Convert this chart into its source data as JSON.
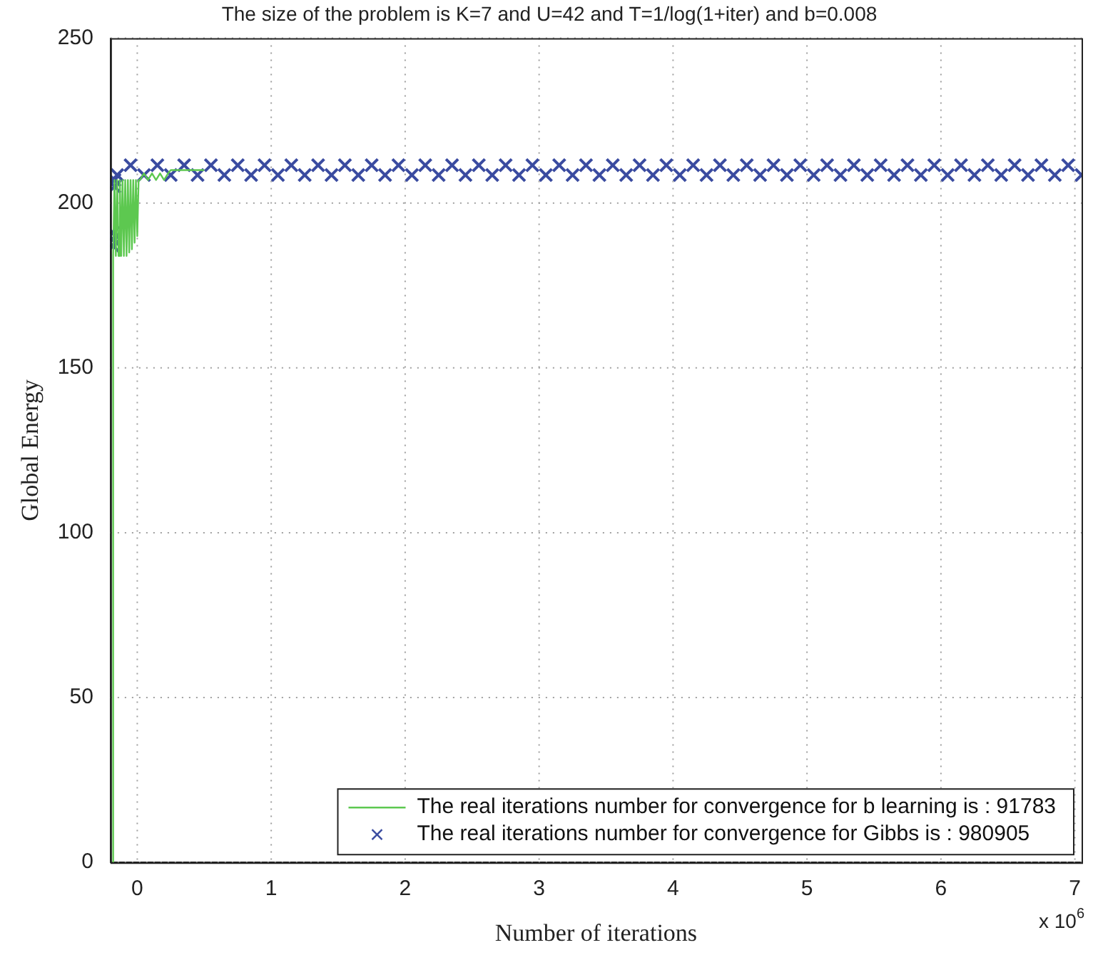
{
  "chart_data": {
    "type": "line",
    "title": "The size of the problem is K=7 and U=42 and T=1/log(1+iter) and b=0.008",
    "xlabel": "Number of iterations",
    "ylabel": "Global Energy",
    "annotations": [
      "x 10$^{6}$"
    ],
    "xlim": [
      -0.2,
      7.05
    ],
    "xticks": [
      0,
      1,
      2,
      3,
      4,
      5,
      6,
      7
    ],
    "ylim": [
      0,
      250
    ],
    "yticks": [
      0,
      50,
      100,
      150,
      200,
      250
    ],
    "grid": true,
    "legend": "bottom right",
    "series": [
      {
        "name": "The real iterations number for convergence for b learning is : 91783",
        "color": "#5dc850",
        "marker": "none",
        "line_style": "solid",
        "x": [
          -0.18,
          -0.18,
          -0.17,
          -0.16,
          -0.15,
          -0.14,
          -0.13,
          -0.12,
          -0.11,
          -0.1,
          -0.09,
          -0.08,
          -0.07,
          -0.06,
          -0.05,
          -0.04,
          -0.03,
          -0.02,
          -0.01,
          0.0,
          0.01,
          0.02,
          0.05,
          0.08,
          0.11,
          0.14,
          0.17,
          0.2,
          0.23,
          0.25,
          0.5
        ],
        "values": [
          0,
          184,
          207,
          184,
          207,
          184,
          207,
          184,
          207,
          184,
          207,
          184,
          207,
          185,
          207,
          186,
          207,
          188,
          207,
          190,
          207,
          207,
          209,
          207,
          209,
          207,
          209,
          207,
          209,
          210,
          210
        ]
      },
      {
        "name": "The real iterations number for convergence for Gibbs is : 980905",
        "type": "scatter",
        "color": "#3a4ba0",
        "marker": "cross",
        "x": [
          -0.18,
          -0.18,
          -0.18,
          -0.17,
          -0.17,
          -0.15,
          -0.05,
          0.05,
          0.15,
          0.25,
          0.35,
          0.45,
          0.55,
          0.65,
          0.75,
          0.85,
          0.95,
          1.05,
          1.15,
          1.25,
          1.35,
          1.45,
          1.55,
          1.65,
          1.75,
          1.85,
          1.95,
          2.05,
          2.15,
          2.25,
          2.35,
          2.45,
          2.55,
          2.65,
          2.75,
          2.85,
          2.95,
          3.05,
          3.15,
          3.25,
          3.35,
          3.45,
          3.55,
          3.65,
          3.75,
          3.85,
          3.95,
          4.05,
          4.15,
          4.25,
          4.35,
          4.45,
          4.55,
          4.65,
          4.75,
          4.85,
          4.95,
          5.05,
          5.15,
          5.25,
          5.35,
          5.45,
          5.55,
          5.65,
          5.75,
          5.85,
          5.95,
          6.05,
          6.15,
          6.25,
          6.35,
          6.45,
          6.55,
          6.65,
          6.75,
          6.85,
          6.95,
          7.05
        ],
        "values": [
          187,
          189,
          191,
          205,
          207,
          208.5,
          211.5,
          208.5,
          211.5,
          208.5,
          211.5,
          208.5,
          211.5,
          208.5,
          211.5,
          208.5,
          211.5,
          208.5,
          211.5,
          208.5,
          211.5,
          208.5,
          211.5,
          208.5,
          211.5,
          208.5,
          211.5,
          208.5,
          211.5,
          208.5,
          211.5,
          208.5,
          211.5,
          208.5,
          211.5,
          208.5,
          211.5,
          208.5,
          211.5,
          208.5,
          211.5,
          208.5,
          211.5,
          208.5,
          211.5,
          208.5,
          211.5,
          208.5,
          211.5,
          208.5,
          211.5,
          208.5,
          211.5,
          208.5,
          211.5,
          208.5,
          211.5,
          208.5,
          211.5,
          208.5,
          211.5,
          208.5,
          211.5,
          208.5,
          211.5,
          208.5,
          211.5,
          208.5,
          211.5,
          208.5,
          211.5,
          208.5,
          211.5,
          208.5,
          211.5,
          208.5,
          211.5,
          208.5
        ]
      }
    ]
  }
}
